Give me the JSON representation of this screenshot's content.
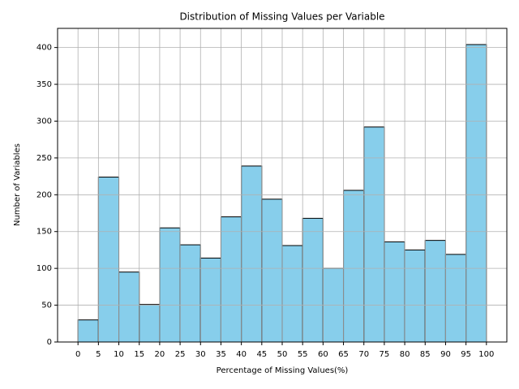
{
  "chart_data": {
    "type": "histogram",
    "title": "Distribution of Missing Values per Variable",
    "xlabel": "Percentage of Missing Values(%)",
    "ylabel": "Number of Variables",
    "bins": [
      0,
      5,
      10,
      15,
      20,
      25,
      30,
      35,
      40,
      45,
      50,
      55,
      60,
      65,
      70,
      75,
      80,
      85,
      90,
      95,
      100
    ],
    "counts": [
      30,
      224,
      95,
      51,
      155,
      132,
      114,
      170,
      239,
      194,
      131,
      168,
      100,
      206,
      292,
      136,
      125,
      138,
      119,
      404
    ],
    "color": "#87ceeb",
    "edgecolor": "#000000",
    "xlim": [
      -5,
      105
    ],
    "xticks": [
      0,
      5,
      10,
      15,
      20,
      25,
      30,
      35,
      40,
      45,
      50,
      55,
      60,
      65,
      70,
      75,
      80,
      85,
      90,
      95,
      100
    ],
    "ylim": [
      0,
      426
    ],
    "yticks": [
      0,
      50,
      100,
      150,
      200,
      250,
      300,
      350,
      400
    ],
    "grid": true
  }
}
